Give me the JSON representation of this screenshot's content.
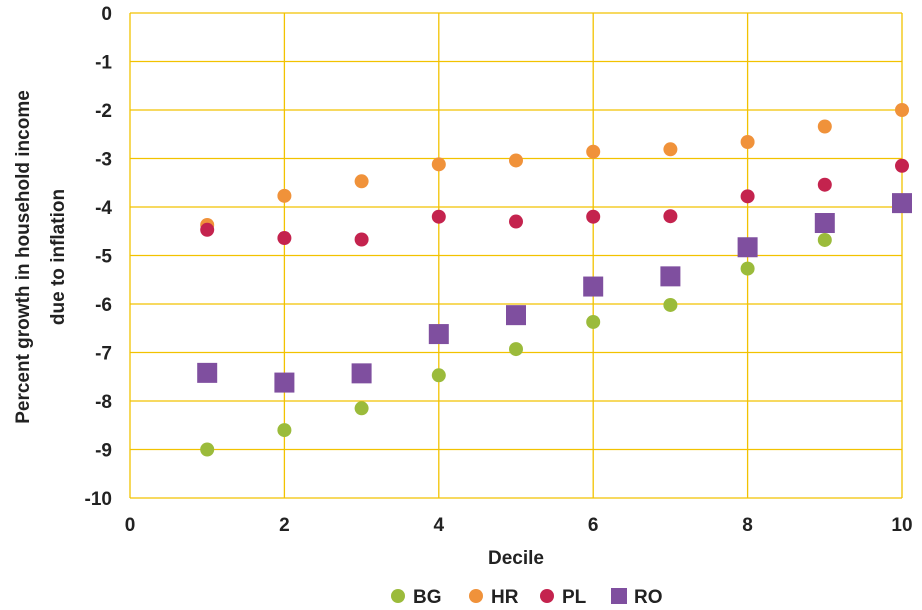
{
  "chart_data": {
    "type": "scatter",
    "xlabel": "Decile",
    "ylabel_lines": [
      "Percent growth in household income",
      "due to inflation"
    ],
    "xlim": [
      0,
      10
    ],
    "ylim": [
      -10,
      0
    ],
    "xticks": [
      0,
      2,
      4,
      6,
      8,
      10
    ],
    "yticks": [
      0,
      -1,
      -2,
      -3,
      -4,
      -5,
      -6,
      -7,
      -8,
      -9,
      -10
    ],
    "grid": true,
    "grid_color": "#F2C200",
    "legend_position": "bottom",
    "series": [
      {
        "name": "BG",
        "color": "#9BBB3B",
        "marker": "circle",
        "x": [
          1,
          2,
          3,
          4,
          5,
          6,
          7,
          8,
          9,
          10
        ],
        "y": [
          -9.0,
          -8.6,
          -8.15,
          -7.47,
          -6.93,
          -6.37,
          -6.02,
          -5.27,
          -4.68,
          -3.9
        ]
      },
      {
        "name": "HR",
        "color": "#F0923A",
        "marker": "circle",
        "x": [
          1,
          2,
          3,
          4,
          5,
          6,
          7,
          8,
          9,
          10
        ],
        "y": [
          -4.37,
          -3.77,
          -3.47,
          -3.12,
          -3.04,
          -2.86,
          -2.81,
          -2.66,
          -2.34,
          -2.0
        ]
      },
      {
        "name": "PL",
        "color": "#C4234E",
        "marker": "circle",
        "x": [
          1,
          2,
          3,
          4,
          5,
          6,
          7,
          8,
          9,
          10
        ],
        "y": [
          -4.47,
          -4.64,
          -4.67,
          -4.2,
          -4.3,
          -4.2,
          -4.19,
          -3.78,
          -3.54,
          -3.15
        ]
      },
      {
        "name": "RO",
        "color": "#7F4F9F",
        "marker": "square",
        "x": [
          1,
          2,
          3,
          4,
          5,
          6,
          7,
          8,
          9,
          10
        ],
        "y": [
          -7.42,
          -7.62,
          -7.43,
          -6.62,
          -6.23,
          -5.64,
          -5.43,
          -4.83,
          -4.33,
          -3.92
        ]
      }
    ]
  }
}
